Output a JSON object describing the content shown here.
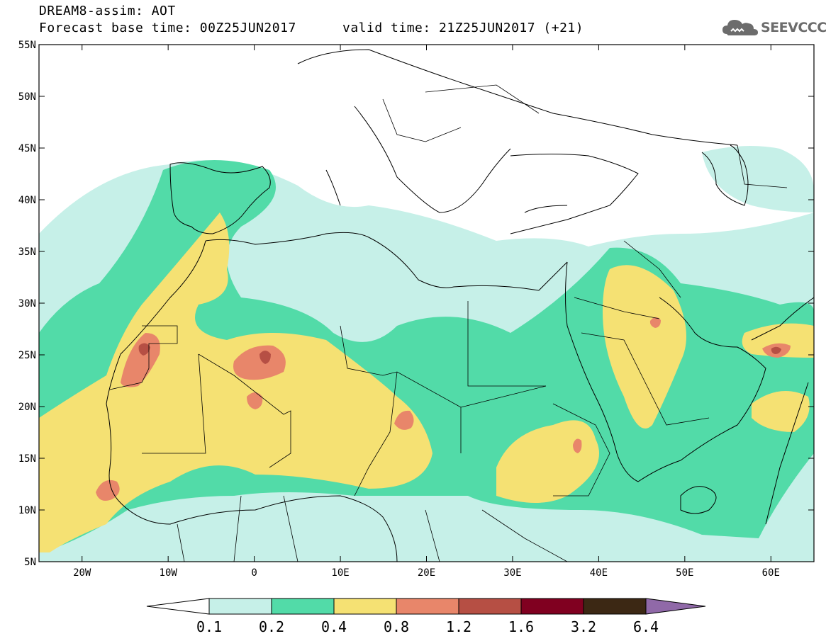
{
  "header": {
    "line1": "DREAM8-assim: AOT",
    "base_time": "Forecast base time: 00Z25JUN2017",
    "valid_time": "valid time: 21Z25JUN2017 (+21)"
  },
  "logo": {
    "text": "SEEVCCC",
    "icon": "cloud-icon"
  },
  "map": {
    "lat_labels": [
      "55N",
      "50N",
      "45N",
      "40N",
      "35N",
      "30N",
      "25N",
      "20N",
      "15N",
      "10N",
      "5N"
    ],
    "lon_labels": [
      "20W",
      "10W",
      "0",
      "10E",
      "20E",
      "30E",
      "40E",
      "50E",
      "60E"
    ],
    "lat_range": [
      5,
      55
    ],
    "lon_range": [
      -25,
      65
    ]
  },
  "colorbar": {
    "labels": [
      "0.1",
      "0.2",
      "0.4",
      "0.8",
      "1.2",
      "1.6",
      "3.2",
      "6.4"
    ],
    "colors": [
      "#ffffff",
      "#c6f0e8",
      "#52dba8",
      "#f5e173",
      "#e8866a",
      "#b64f44",
      "#800020",
      "#3c2814",
      "#9069a8"
    ]
  },
  "colors": {
    "c1": "#c6f0e8",
    "c2": "#52dba8",
    "c3": "#f5e173",
    "c4": "#e8866a",
    "c5": "#b64f44"
  }
}
